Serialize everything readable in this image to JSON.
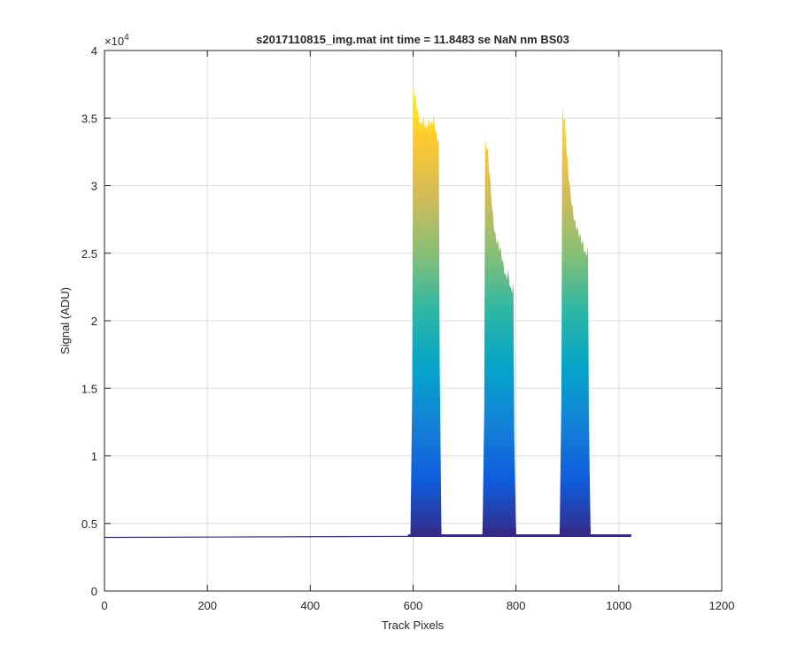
{
  "chart_data": {
    "type": "area",
    "title": "s2017110815_img.mat int time = 11.8483 se  NaN nm BS03",
    "xlabel": "Track Pixels",
    "ylabel": "Signal (ADU)",
    "y_exponent_label": "×10",
    "y_exponent_power": "4",
    "xlim": [
      0,
      1200
    ],
    "ylim": [
      0,
      40000
    ],
    "x_ticks": [
      0,
      200,
      400,
      600,
      800,
      1000,
      1200
    ],
    "x_tick_labels": [
      "0",
      "200",
      "400",
      "600",
      "800",
      "1000",
      "1200"
    ],
    "y_ticks": [
      0,
      5000,
      10000,
      15000,
      20000,
      25000,
      30000,
      35000,
      40000
    ],
    "y_tick_labels": [
      "0",
      "0.5",
      "1",
      "1.5",
      "2",
      "2.5",
      "3",
      "3.5",
      "4"
    ],
    "grid": true,
    "colormap": "parula",
    "colormap_stops": [
      "#352a87",
      "#0f5cdd",
      "#1481d6",
      "#06a4ca",
      "#2eb7a4",
      "#87bf77",
      "#d1bb59",
      "#fec832",
      "#f9fb0e"
    ],
    "baseline": 4000,
    "x_max": 1024,
    "series": [
      {
        "x": [
          600,
          605,
          610,
          615,
          620,
          625,
          630,
          635,
          640,
          645,
          650
        ],
        "values": [
          37500,
          36800,
          35500,
          34800,
          35200,
          34500,
          35000,
          34800,
          35300,
          34000,
          33500
        ]
      },
      {
        "x": [
          740,
          745,
          750,
          755,
          760,
          765,
          770,
          775,
          780,
          785,
          790,
          795
        ],
        "values": [
          33500,
          32800,
          30500,
          28000,
          26500,
          26000,
          25500,
          24500,
          23500,
          23800,
          22500,
          22800
        ]
      },
      {
        "x": [
          890,
          895,
          900,
          905,
          910,
          915,
          920,
          925,
          930,
          935,
          940
        ],
        "values": [
          36000,
          35000,
          32000,
          30000,
          28500,
          27500,
          27000,
          26500,
          26000,
          25200,
          25500
        ]
      }
    ]
  }
}
